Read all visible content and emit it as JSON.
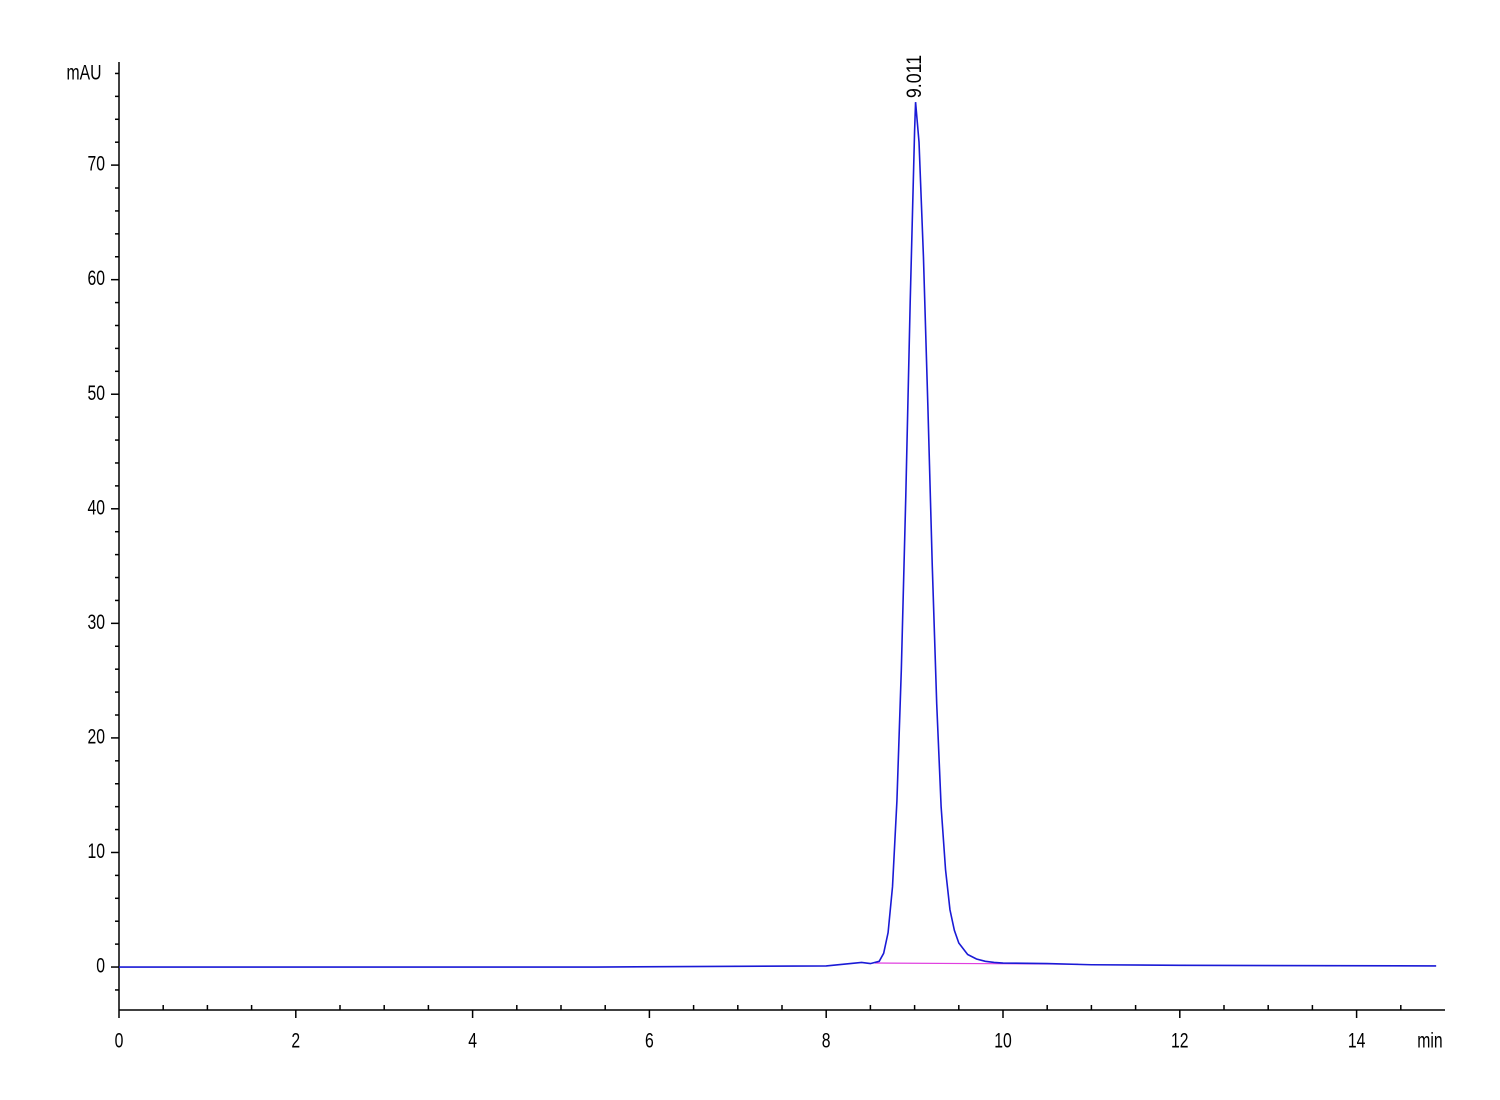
{
  "chart_data": {
    "type": "line",
    "y_label": "mAU",
    "x_label": "min",
    "xlim": [
      0,
      15
    ],
    "ylim": [
      -3.75,
      79
    ],
    "xticks": [
      0,
      2,
      4,
      6,
      8,
      10,
      12,
      14
    ],
    "yticks": [
      0,
      10,
      20,
      30,
      40,
      50,
      60,
      70
    ],
    "xminorticks": [
      0.5,
      1,
      1.5,
      2.5,
      3,
      3.5,
      4.5,
      5,
      5.5,
      6.5,
      7,
      7.5,
      8.5,
      9,
      9.5,
      10.5,
      11,
      11.5,
      12.5,
      13,
      13.5,
      14.5
    ],
    "yminorticks": [
      -2,
      2,
      4,
      6,
      8,
      12,
      14,
      16,
      18,
      22,
      24,
      26,
      28,
      32,
      34,
      36,
      38,
      42,
      44,
      46,
      48,
      52,
      54,
      56,
      58,
      62,
      64,
      66,
      68,
      72,
      74,
      76,
      78
    ],
    "x": [
      0,
      5.4,
      8.0,
      8.4,
      8.5,
      8.6,
      8.65,
      8.7,
      8.75,
      8.8,
      8.85,
      8.9,
      8.95,
      9.0,
      9.011,
      9.05,
      9.1,
      9.15,
      9.2,
      9.25,
      9.3,
      9.35,
      9.4,
      9.45,
      9.5,
      9.6,
      9.7,
      9.8,
      9.9,
      10.0,
      10.5,
      11.0,
      12.0,
      14.9
    ],
    "series": [
      {
        "color": "#1a1ad6",
        "values": [
          0,
          0,
          0.1,
          0.4,
          0.3,
          0.5,
          1.2,
          3.0,
          7.0,
          14.5,
          26,
          41,
          58,
          73,
          75.5,
          72,
          62,
          49,
          35,
          23,
          14,
          8.5,
          5.0,
          3.2,
          2.1,
          1.1,
          0.7,
          0.5,
          0.4,
          0.35,
          0.3,
          0.2,
          0.15,
          0.1
        ]
      }
    ],
    "baseline": {
      "x": [
        8.55,
        10.85
      ],
      "values": [
        0.35,
        0.25
      ],
      "color": "#e040e0"
    },
    "annotations": [
      {
        "x": 9.011,
        "y": 75.5,
        "text": "9.011"
      }
    ]
  }
}
